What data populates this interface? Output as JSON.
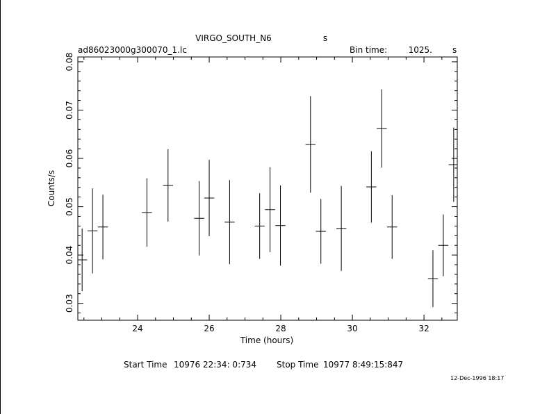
{
  "chart_data": {
    "type": "scatter",
    "title": "VIRGO_SOUTH_N6",
    "title_suffix": "s",
    "filename": "ad86023000g300070_1.lc",
    "bin_time_label": "Bin time:",
    "bin_time_value": "1025.",
    "bin_time_unit": "s",
    "xlabel": "Time (hours)",
    "ylabel": "Counts/s",
    "xlim": [
      22.33,
      32.93
    ],
    "ylim": [
      0.0265,
      0.081
    ],
    "x_ticks": [
      24,
      26,
      28,
      30,
      32
    ],
    "x_tick_labels": [
      "24",
      "26",
      "28",
      "30",
      "32"
    ],
    "y_ticks": [
      0.03,
      0.04,
      0.05,
      0.06,
      0.07,
      0.08
    ],
    "y_tick_labels": [
      "0.03",
      "0.04",
      "0.05",
      "0.06",
      "0.07",
      "0.08"
    ],
    "x_err": 0.14,
    "points": [
      {
        "x": 22.45,
        "y": 0.039,
        "yerr": 0.0065
      },
      {
        "x": 22.74,
        "y": 0.045,
        "yerr": 0.0088
      },
      {
        "x": 23.03,
        "y": 0.0458,
        "yerr": 0.0067
      },
      {
        "x": 24.26,
        "y": 0.0488,
        "yerr": 0.0071
      },
      {
        "x": 24.85,
        "y": 0.0544,
        "yerr": 0.0075
      },
      {
        "x": 25.72,
        "y": 0.0476,
        "yerr": 0.0077
      },
      {
        "x": 26.0,
        "y": 0.0518,
        "yerr": 0.0079
      },
      {
        "x": 26.57,
        "y": 0.0468,
        "yerr": 0.0087
      },
      {
        "x": 27.41,
        "y": 0.046,
        "yerr": 0.0068
      },
      {
        "x": 27.7,
        "y": 0.0494,
        "yerr": 0.0088
      },
      {
        "x": 27.99,
        "y": 0.0461,
        "yerr": 0.0083
      },
      {
        "x": 28.83,
        "y": 0.0629,
        "yerr": 0.01
      },
      {
        "x": 29.12,
        "y": 0.0449,
        "yerr": 0.0067
      },
      {
        "x": 29.69,
        "y": 0.0455,
        "yerr": 0.0088
      },
      {
        "x": 30.53,
        "y": 0.0541,
        "yerr": 0.0074
      },
      {
        "x": 30.82,
        "y": 0.0662,
        "yerr": 0.0081
      },
      {
        "x": 31.11,
        "y": 0.0458,
        "yerr": 0.0066
      },
      {
        "x": 32.25,
        "y": 0.0351,
        "yerr": 0.0059
      },
      {
        "x": 32.54,
        "y": 0.042,
        "yerr": 0.0064
      },
      {
        "x": 32.83,
        "y": 0.0587,
        "yerr": 0.0077
      }
    ],
    "grid": false,
    "legend": "none"
  },
  "footer": {
    "start_label": "Start Time",
    "start_value": "10976 22:34: 0:734",
    "stop_label": "Stop Time",
    "stop_value": "10977  8:49:15:847",
    "date_stamp": "12-Dec-1996 18:17"
  }
}
